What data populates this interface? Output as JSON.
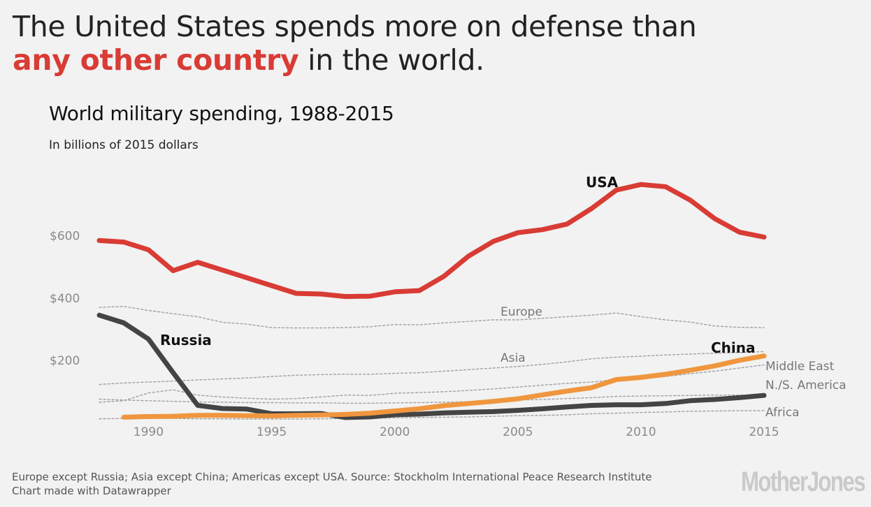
{
  "headline": {
    "line1": "The United States spends more on defense than",
    "highlight": "any other country",
    "rest": " in the world."
  },
  "chart_data": {
    "type": "line",
    "title": "World military spending, 1988-2015",
    "subtitle": "In billions of 2015 dollars",
    "xlim": [
      1988,
      2015
    ],
    "ylim": [
      0,
      750
    ],
    "y_ticks": [
      {
        "value": 200,
        "label": "$200"
      },
      {
        "value": 400,
        "label": "$400"
      },
      {
        "value": 600,
        "label": "$600"
      }
    ],
    "x_ticks": [
      1990,
      1995,
      2000,
      2005,
      2010,
      2015
    ],
    "grid": false,
    "series": [
      {
        "name": "USA",
        "color": "#d93b35",
        "style": "solid",
        "x": [
          1988,
          1989,
          1990,
          1991,
          1992,
          1993,
          1994,
          1995,
          1996,
          1997,
          1998,
          1999,
          2000,
          2001,
          2002,
          2003,
          2004,
          2005,
          2006,
          2007,
          2008,
          2009,
          2010,
          2011,
          2012,
          2013,
          2014,
          2015
        ],
        "y": [
          585,
          580,
          555,
          488,
          515,
          490,
          465,
          440,
          415,
          413,
          405,
          406,
          420,
          424,
          470,
          535,
          582,
          610,
          620,
          638,
          688,
          747,
          765,
          758,
          715,
          655,
          612,
          596
        ]
      },
      {
        "name": "Russia",
        "color": "#444444",
        "style": "solid",
        "x": [
          1988,
          1989,
          1990,
          1991,
          1992,
          1993,
          1994,
          1995,
          1996,
          1997,
          1998,
          1999,
          2000,
          2001,
          2002,
          2003,
          2004,
          2005,
          2006,
          2007,
          2008,
          2009,
          2010,
          2011,
          2012,
          2013,
          2014,
          2015
        ],
        "y": [
          345,
          320,
          268,
          160,
          55,
          45,
          43,
          28,
          28,
          29,
          16,
          18,
          25,
          27,
          31,
          33,
          35,
          39,
          44,
          50,
          55,
          57,
          57,
          61,
          70,
          74,
          80,
          87
        ]
      },
      {
        "name": "China",
        "color": "#f0963e",
        "style": "solid",
        "x": [
          1989,
          1990,
          1991,
          1992,
          1993,
          1994,
          1995,
          1996,
          1997,
          1998,
          1999,
          2000,
          2001,
          2002,
          2003,
          2004,
          2005,
          2006,
          2007,
          2008,
          2009,
          2010,
          2011,
          2012,
          2013,
          2014,
          2015
        ],
        "y": [
          17,
          19,
          20,
          23,
          23,
          22,
          21,
          23,
          24,
          26,
          30,
          37,
          44,
          54,
          61,
          68,
          76,
          89,
          101,
          112,
          138,
          145,
          155,
          168,
          182,
          200,
          214
        ]
      },
      {
        "name": "Europe",
        "color": "#a0a0a0",
        "style": "dashed",
        "x": [
          1988,
          1989,
          1990,
          1991,
          1992,
          1993,
          1994,
          1995,
          1996,
          1997,
          1998,
          1999,
          2000,
          2001,
          2002,
          2003,
          2004,
          2005,
          2006,
          2007,
          2008,
          2009,
          2010,
          2011,
          2012,
          2013,
          2014,
          2015
        ],
        "y": [
          370,
          373,
          360,
          350,
          340,
          322,
          316,
          305,
          304,
          304,
          305,
          308,
          315,
          314,
          320,
          325,
          330,
          330,
          335,
          340,
          345,
          352,
          340,
          330,
          323,
          310,
          306,
          305
        ]
      },
      {
        "name": "Asia",
        "color": "#a0a0a0",
        "style": "dashed",
        "x": [
          1988,
          1989,
          1990,
          1991,
          1992,
          1993,
          1994,
          1995,
          1996,
          1997,
          1998,
          1999,
          2000,
          2001,
          2002,
          2003,
          2004,
          2005,
          2006,
          2007,
          2008,
          2009,
          2010,
          2011,
          2012,
          2013,
          2014,
          2015
        ],
        "y": [
          122,
          127,
          130,
          133,
          137,
          140,
          143,
          148,
          152,
          154,
          155,
          155,
          158,
          160,
          165,
          170,
          175,
          180,
          187,
          195,
          205,
          210,
          213,
          217,
          220,
          223,
          225,
          228
        ]
      },
      {
        "name": "Middle East",
        "color": "#a0a0a0",
        "style": "dashed",
        "x": [
          1988,
          1989,
          1990,
          1991,
          1992,
          1993,
          1994,
          1995,
          1996,
          1997,
          1998,
          1999,
          2000,
          2001,
          2002,
          2003,
          2004,
          2005,
          2006,
          2007,
          2008,
          2009,
          2010,
          2011,
          2012,
          2013,
          2014,
          2015
        ],
        "y": [
          65,
          70,
          95,
          105,
          88,
          82,
          78,
          75,
          77,
          82,
          88,
          87,
          94,
          96,
          99,
          103,
          108,
          114,
          120,
          126,
          130,
          138,
          140,
          148,
          157,
          165,
          175,
          185
        ]
      },
      {
        "name": "N./S. America",
        "color": "#a0a0a0",
        "style": "dashed",
        "x": [
          1988,
          1989,
          1990,
          1991,
          1992,
          1993,
          1994,
          1995,
          1996,
          1997,
          1998,
          1999,
          2000,
          2001,
          2002,
          2003,
          2004,
          2005,
          2006,
          2007,
          2008,
          2009,
          2010,
          2011,
          2012,
          2013,
          2014,
          2015
        ],
        "y": [
          75,
          72,
          70,
          68,
          66,
          65,
          64,
          64,
          63,
          63,
          62,
          62,
          63,
          64,
          65,
          67,
          70,
          72,
          74,
          77,
          80,
          84,
          85,
          86,
          87,
          88,
          88,
          88
        ]
      },
      {
        "name": "Africa",
        "color": "#a0a0a0",
        "style": "dashed",
        "x": [
          1988,
          1989,
          1990,
          1991,
          1992,
          1993,
          1994,
          1995,
          1996,
          1997,
          1998,
          1999,
          2000,
          2001,
          2002,
          2003,
          2004,
          2005,
          2006,
          2007,
          2008,
          2009,
          2010,
          2011,
          2012,
          2013,
          2014,
          2015
        ],
        "y": [
          12,
          13,
          14,
          13,
          12,
          12,
          11,
          11,
          11,
          12,
          13,
          14,
          15,
          16,
          17,
          18,
          20,
          22,
          23,
          25,
          28,
          30,
          32,
          34,
          36,
          37,
          38,
          38
        ]
      }
    ],
    "labels": [
      {
        "text": "USA",
        "series": "USA",
        "bold": true
      },
      {
        "text": "Russia",
        "series": "Russia",
        "bold": true
      },
      {
        "text": "China",
        "series": "China",
        "bold": true
      },
      {
        "text": "Europe",
        "series": "Europe",
        "bold": false
      },
      {
        "text": "Asia",
        "series": "Asia",
        "bold": false
      },
      {
        "text": "Middle East",
        "series": "Middle East",
        "bold": false
      },
      {
        "text": "N./S. America",
        "series": "N./S. America",
        "bold": false
      },
      {
        "text": "Africa",
        "series": "Africa",
        "bold": false
      }
    ]
  },
  "footnote": {
    "line1": "Europe except Russia; Asia except China; Americas except USA. Source: Stockholm International Peace Research Institute",
    "line2": "Chart made with Datawrapper"
  },
  "logo": "MotherJones"
}
